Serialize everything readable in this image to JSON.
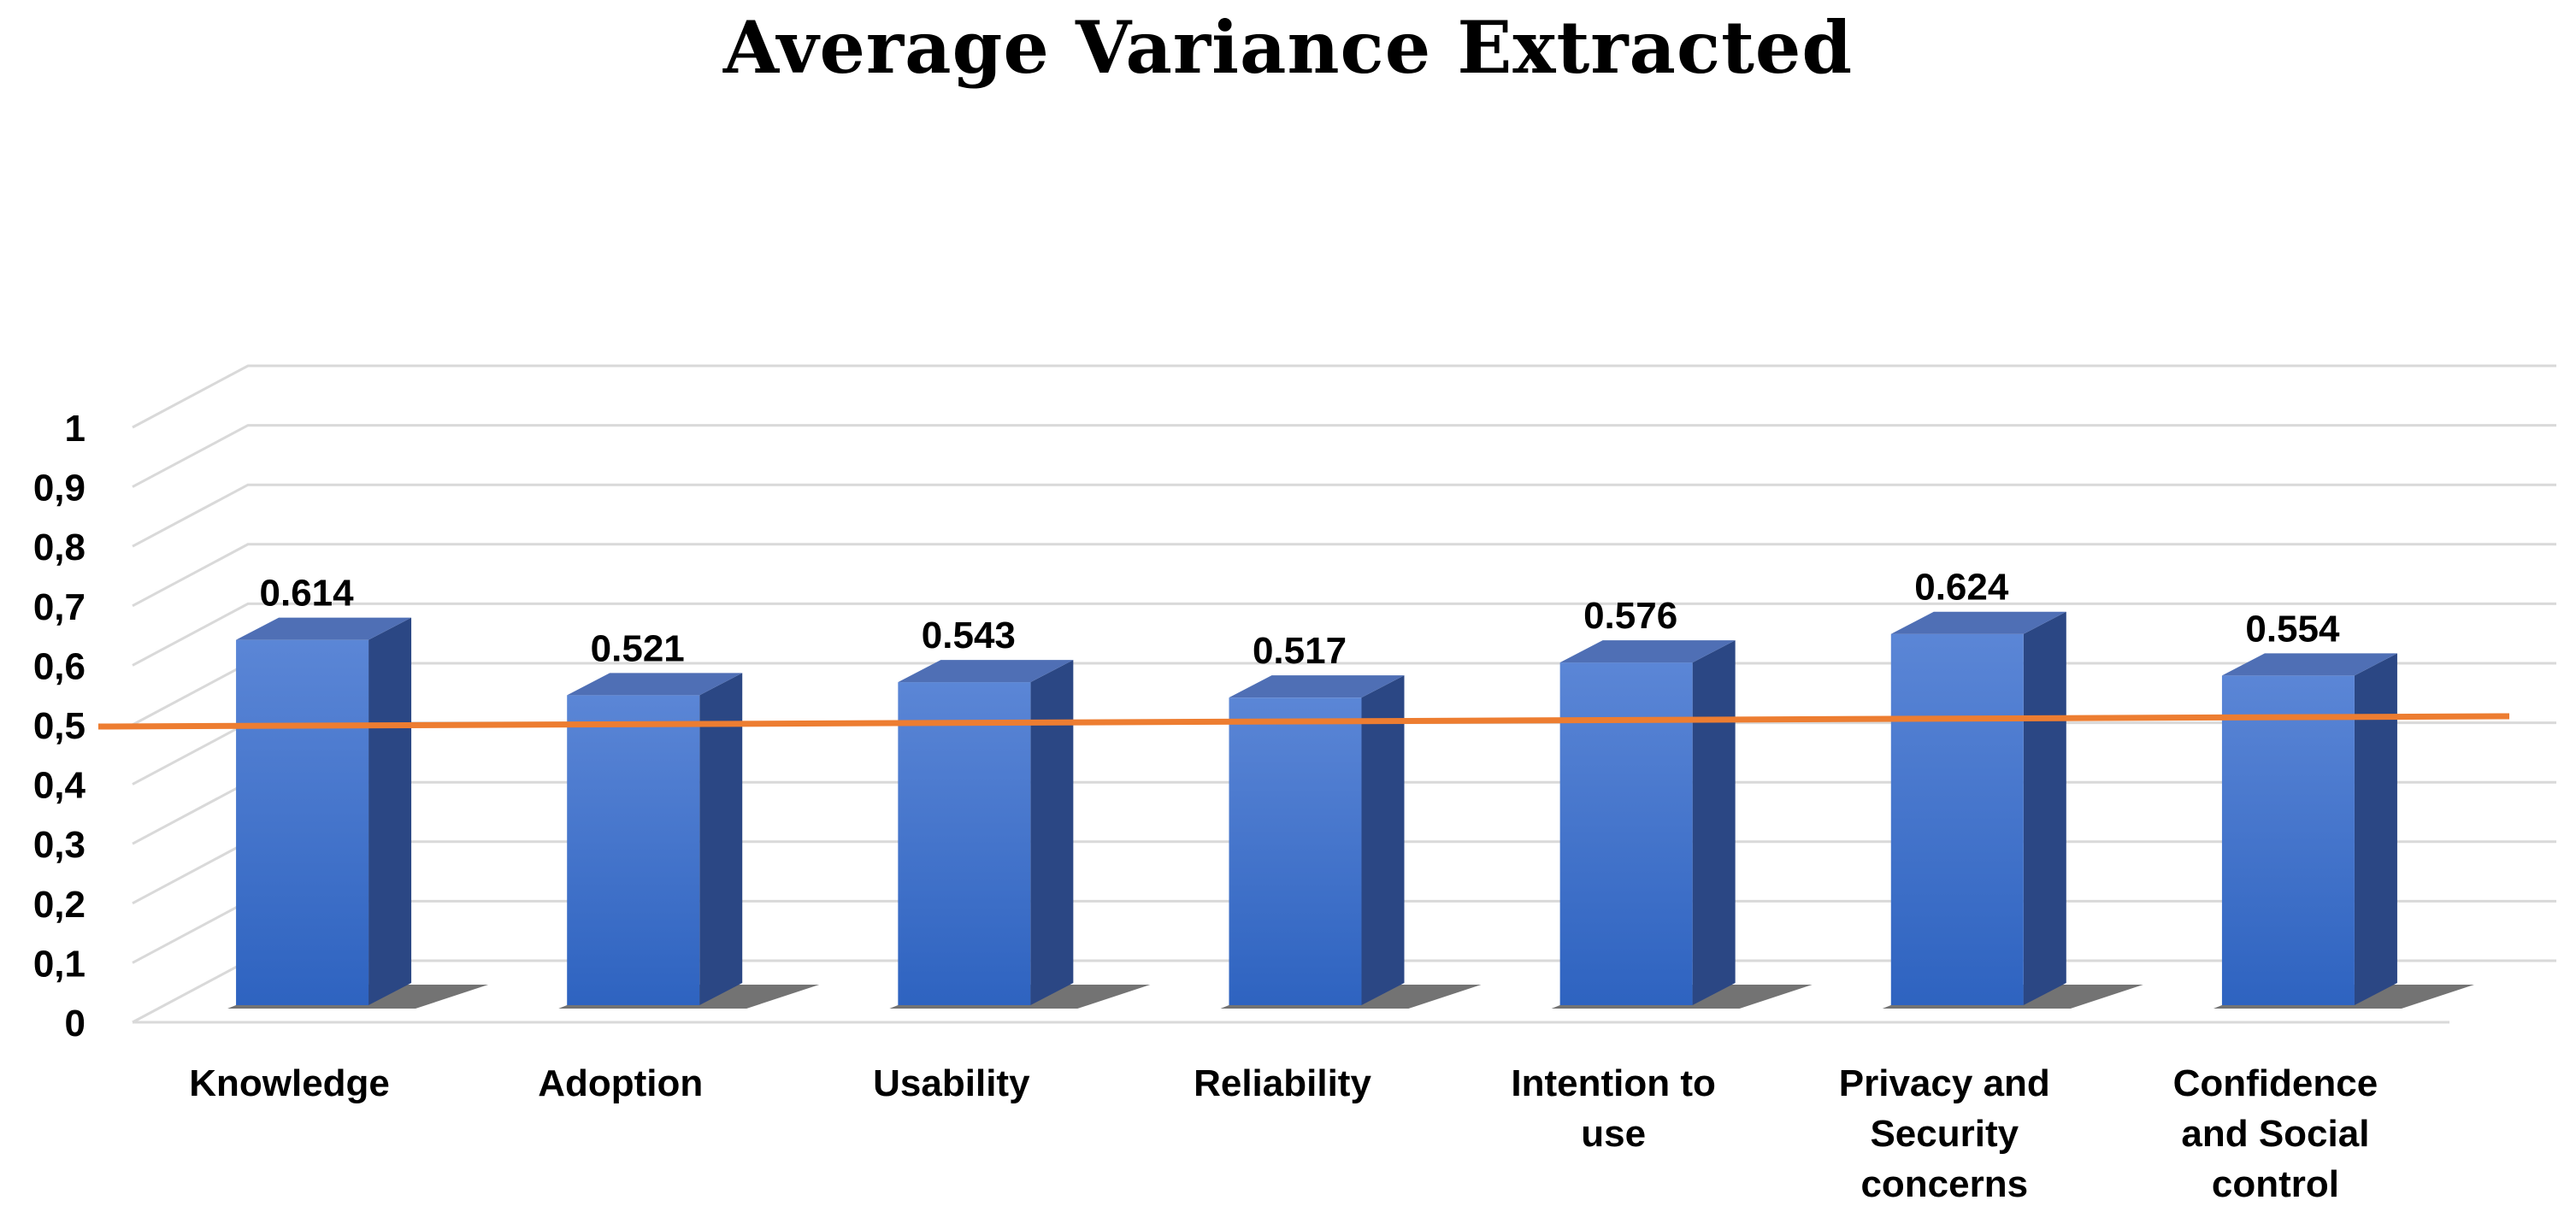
{
  "chart_data": {
    "type": "bar",
    "title": "Average Variance Extracted",
    "categories": [
      [
        "Knowledge"
      ],
      [
        "Adoption"
      ],
      [
        "Usability"
      ],
      [
        "Reliability"
      ],
      [
        "Intention to",
        "use"
      ],
      [
        "Privacy and",
        "Security",
        "concerns"
      ],
      [
        "Confidence",
        "and Social",
        "control"
      ]
    ],
    "values": [
      0.614,
      0.521,
      0.543,
      0.517,
      0.576,
      0.624,
      0.554
    ],
    "data_labels": [
      "0.614",
      "0.521",
      "0.543",
      "0.517",
      "0.576",
      "0.624",
      "0.554"
    ],
    "y_ticks": [
      {
        "value": 0,
        "label": "0"
      },
      {
        "value": 0.1,
        "label": "0,1"
      },
      {
        "value": 0.2,
        "label": "0,2"
      },
      {
        "value": 0.3,
        "label": "0,3"
      },
      {
        "value": 0.4,
        "label": "0,4"
      },
      {
        "value": 0.5,
        "label": "0,5"
      },
      {
        "value": 0.6,
        "label": "0,6"
      },
      {
        "value": 0.7,
        "label": "0,7"
      },
      {
        "value": 0.8,
        "label": "0,8"
      },
      {
        "value": 0.9,
        "label": "0,9"
      },
      {
        "value": 1,
        "label": "1"
      }
    ],
    "ylim": [
      0,
      1
    ],
    "threshold": 0.5,
    "xlabel": "",
    "ylabel": "",
    "grid": true,
    "colors": {
      "bar_front_top": "#5b86d6",
      "bar_front_bottom": "#2e63c0",
      "bar_side": "#2b4784",
      "bar_top": "#4f6fb5",
      "threshold_line": "#ed7d31",
      "gridline": "#d9d9d9"
    }
  }
}
